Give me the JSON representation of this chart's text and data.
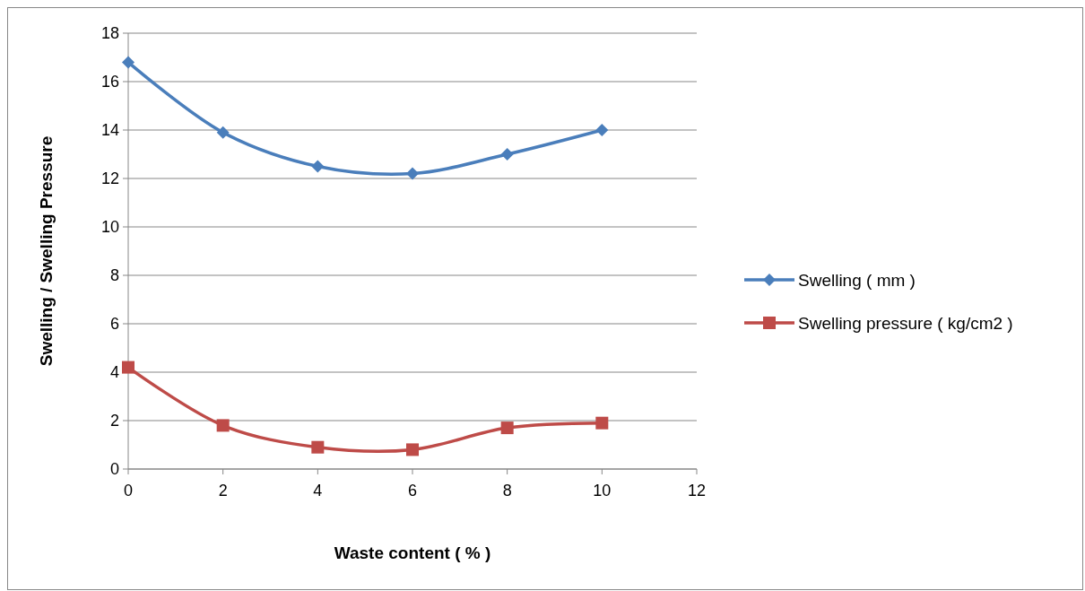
{
  "chart_data": {
    "type": "line",
    "xlabel": "Waste content (  %  )",
    "ylabel": "Swelling / Swelling Pressure",
    "x": [
      0,
      2,
      4,
      6,
      8,
      10
    ],
    "series": [
      {
        "name": "Swelling ( mm )",
        "color": "#4a7ebb",
        "values": [
          16.8,
          13.9,
          12.5,
          12.2,
          13.0,
          14.0
        ],
        "marker": "diamond"
      },
      {
        "name": "Swelling pressure ( kg/cm2 )",
        "color": "#be4b48",
        "values": [
          4.2,
          1.8,
          0.9,
          0.8,
          1.7,
          1.9
        ],
        "marker": "square"
      }
    ],
    "xlim": [
      0,
      12
    ],
    "xticks": [
      0,
      2,
      4,
      6,
      8,
      10,
      12
    ],
    "ylim": [
      0,
      18
    ],
    "yticks": [
      0,
      2,
      4,
      6,
      8,
      10,
      12,
      14,
      16,
      18
    ],
    "grid": "y",
    "legend": "right",
    "line_style": "solid"
  }
}
